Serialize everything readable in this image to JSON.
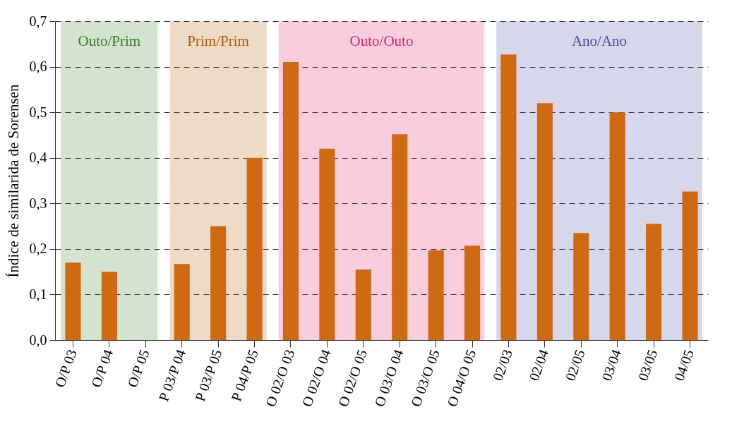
{
  "chart_data": {
    "type": "bar",
    "ylabel": "Índice de similarida de Sorensen",
    "categories": [
      "O/P 03",
      "O/P 04",
      "O/P 05",
      "P 03/P 04",
      "P 03/P 05",
      "P 04/P 05",
      "O 02/O 03",
      "O 02/O 04",
      "O 02/O 05",
      "O 03/O 04",
      "O 03/O 05",
      "O 04/O 05",
      "02/03",
      "02/04",
      "02/05",
      "03/04",
      "03/05",
      "04/05"
    ],
    "values": [
      0.17,
      0.15,
      0,
      0.167,
      0.25,
      0.4,
      0.61,
      0.42,
      0.155,
      0.452,
      0.197,
      0.207,
      0.627,
      0.52,
      0.235,
      0.5,
      0.255,
      0.326
    ],
    "color": "#d06a10",
    "ylim": [
      0,
      0.7
    ],
    "yticks": [
      {
        "value": 0,
        "label": "0,0"
      },
      {
        "value": 0.1,
        "label": "0,1"
      },
      {
        "value": 0.2,
        "label": "0,2"
      },
      {
        "value": 0.3,
        "label": "0,3"
      },
      {
        "value": 0.4,
        "label": "0,4"
      },
      {
        "value": 0.5,
        "label": "0,5"
      },
      {
        "value": 0.6,
        "label": "0,6"
      },
      {
        "value": 0.7,
        "label": "0,7"
      }
    ],
    "grid": "y",
    "bands": [
      {
        "axis": "x",
        "from": "O/P 03",
        "to": "O/P 05",
        "label": "Outo/Prim",
        "color": "#3c7a28"
      },
      {
        "axis": "x",
        "from": "P 03/P 04",
        "to": "P 04/P 05",
        "label": "Prim/Prim",
        "color": "#b05a00"
      },
      {
        "axis": "x",
        "from": "O 02/O 03",
        "to": "O 04/O 05",
        "label": "Outo/Outo",
        "color": "#e0206a"
      },
      {
        "axis": "x",
        "from": "02/03",
        "to": "04/05",
        "label": "Ano/Ano",
        "color": "#4a4aa8"
      }
    ]
  }
}
